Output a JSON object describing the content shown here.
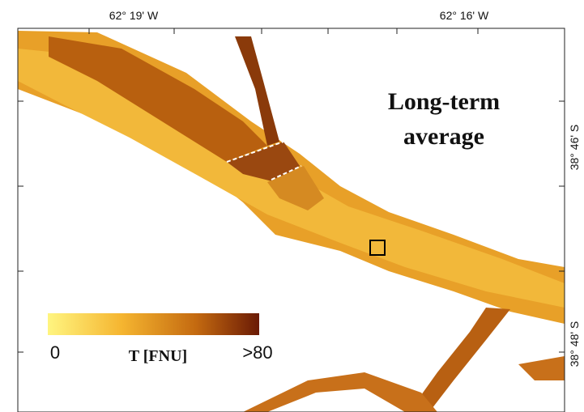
{
  "map": {
    "top_labels": [
      "62° 19' W",
      "62° 16' W"
    ],
    "right_labels": [
      "38° 46' S",
      "38° 48' S"
    ],
    "title_lines": [
      "Long-term",
      "average"
    ],
    "colorbar": {
      "min_label": "0",
      "title": "T [FNU]",
      "max_label": ">80"
    }
  }
}
